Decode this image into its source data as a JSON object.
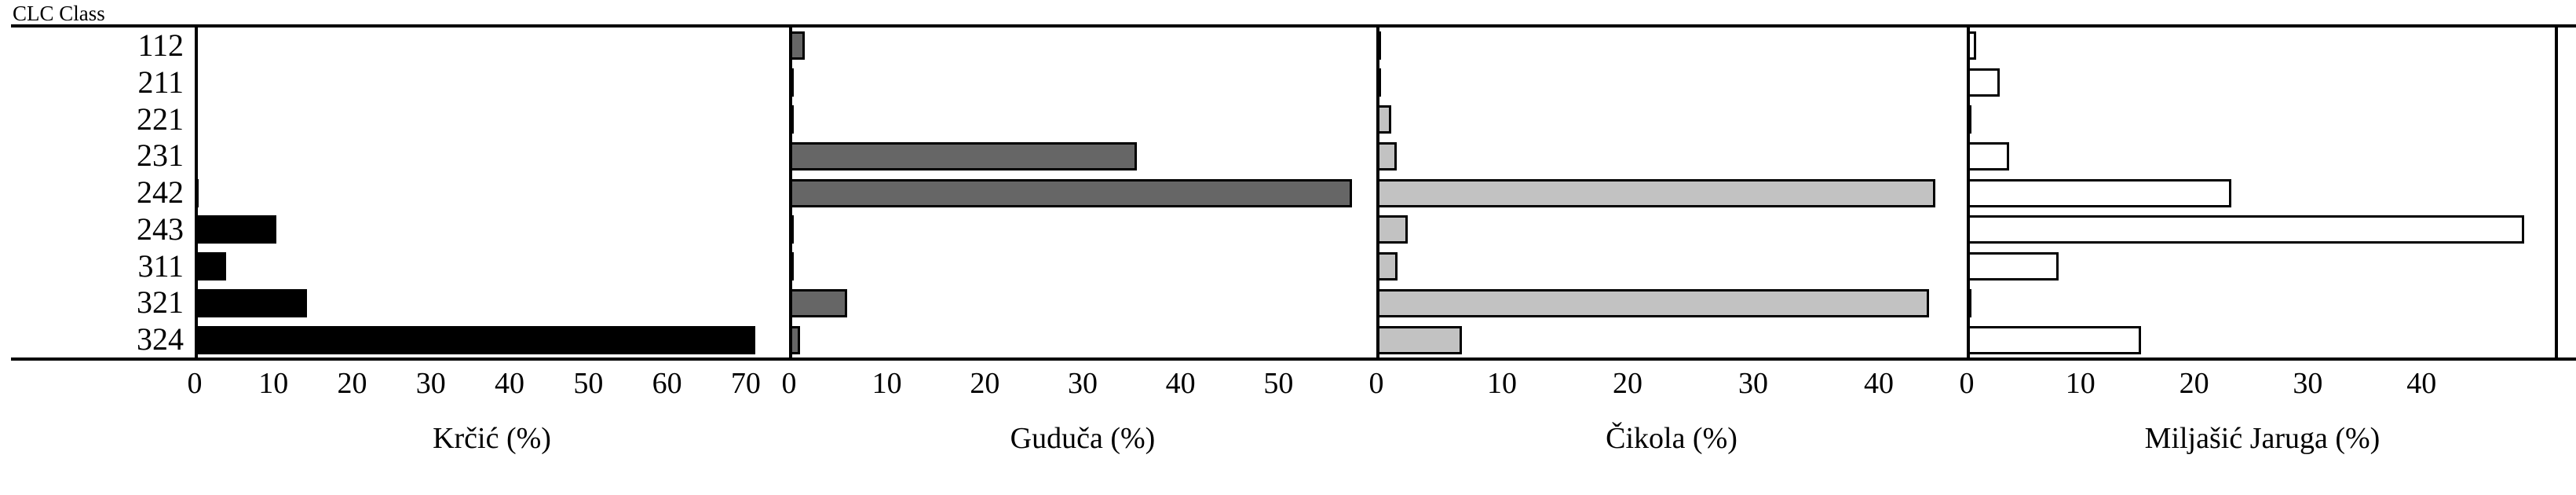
{
  "figure": {
    "y_axis_title": "CLC Class"
  },
  "chart_data": {
    "type": "bar",
    "orientation": "horizontal",
    "value_unit": "%",
    "grid": false,
    "legend": false,
    "categories": [
      "112",
      "211",
      "221",
      "231",
      "242",
      "243",
      "311",
      "321",
      "324"
    ],
    "category_axis_title": "CLC Class",
    "panels": [
      {
        "title": "Krčić (%)",
        "bar_fill": "#000000",
        "bar_border": "none",
        "values": [
          0.2,
          0.2,
          0.2,
          0.4,
          0.5,
          10.4,
          4.0,
          14.3,
          71.2
        ],
        "ticks": [
          0,
          10,
          20,
          30,
          40,
          50,
          60,
          70
        ],
        "xmax": 75.5
      },
      {
        "title": "Guduča (%)",
        "bar_fill": "#666666",
        "bar_border": "#000000",
        "values": [
          1.6,
          0.4,
          0.4,
          35.5,
          57.5,
          0.4,
          0.4,
          5.9,
          1.1
        ],
        "ticks": [
          0,
          10,
          20,
          30,
          40,
          50
        ],
        "xmax": 60
      },
      {
        "title": "Čikola (%)",
        "bar_fill": "#c2c2c2",
        "bar_border": "#000000",
        "values": [
          0.3,
          0.3,
          1.2,
          1.6,
          44.5,
          2.5,
          1.7,
          44.0,
          6.8
        ],
        "ticks": [
          0,
          10,
          20,
          30,
          40
        ],
        "xmax": 47
      },
      {
        "title": "Miljašić Jaruga (%)",
        "bar_fill": "#ffffff",
        "bar_border": "#000000",
        "values": [
          0.8,
          2.9,
          0.3,
          3.7,
          23.3,
          49.0,
          8.1,
          0.3,
          15.3
        ],
        "ticks": [
          0,
          10,
          20,
          30,
          40
        ],
        "xmax": 52
      }
    ]
  }
}
